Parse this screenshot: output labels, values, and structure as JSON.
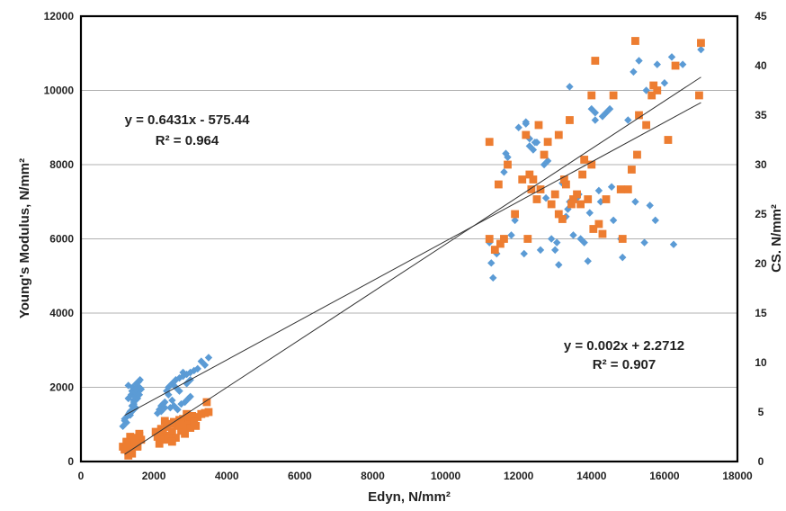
{
  "chart_data": {
    "type": "scatter",
    "title": "",
    "xlabel": "Edyn, N/mm²",
    "ylabel": "Young's Modulus, N/mm²",
    "y2label": "CS. N/mm²",
    "xlim": [
      0,
      18000
    ],
    "ylim": [
      0,
      12000
    ],
    "y2lim": [
      0,
      45
    ],
    "xticks": [
      0,
      2000,
      4000,
      6000,
      8000,
      10000,
      12000,
      14000,
      16000,
      18000
    ],
    "yticks": [
      0,
      2000,
      4000,
      6000,
      8000,
      10000,
      12000
    ],
    "y2ticks": [
      0,
      5,
      10,
      15,
      20,
      25,
      30,
      35,
      40,
      45
    ],
    "grid": "horizontal",
    "legend": "none",
    "colors": {
      "series1": "#5b9bd5",
      "series2": "#ed7d31",
      "trend": "#333333"
    },
    "series": [
      {
        "axis": "left",
        "marker": "diamond",
        "trendline": {
          "slope": 0.6431,
          "intercept": -575.44,
          "x_range": [
            1200,
            17000
          ]
        },
        "equation": "y = 0.6431x - 575.44",
        "r2": "R² = 0.964",
        "x": [
          1150,
          1200,
          1250,
          1300,
          1320,
          1350,
          1380,
          1400,
          1420,
          1450,
          1480,
          1500,
          1520,
          1550,
          1580,
          1600,
          1620,
          1650,
          1250,
          1300,
          1350,
          1400,
          1450,
          1500,
          1550,
          1600,
          1300,
          1400,
          1500,
          1200,
          1350,
          1450,
          2100,
          2150,
          2200,
          2250,
          2300,
          2350,
          2400,
          2450,
          2500,
          2550,
          2600,
          2650,
          2700,
          2750,
          2800,
          2850,
          2900,
          2950,
          3000,
          2400,
          2600,
          2800,
          3000,
          3100,
          3200,
          3300,
          3400,
          3500,
          2200,
          2300,
          2500,
          2700,
          2900,
          3000,
          11200,
          11300,
          11400,
          11600,
          11700,
          11900,
          12000,
          12200,
          12300,
          12400,
          12500,
          12600,
          12700,
          12800,
          12900,
          13000,
          13100,
          13200,
          13300,
          13400,
          13500,
          13600,
          13700,
          13800,
          13900,
          14000,
          14100,
          14200,
          14300,
          14400,
          14500,
          14600,
          14800,
          15000,
          15200,
          15300,
          15500,
          15600,
          15800,
          16000,
          16200,
          16500,
          17000,
          11250,
          11800,
          12150,
          12450,
          12750,
          13050,
          13350,
          13650,
          13950,
          14250,
          14550,
          14850,
          15150,
          15450,
          15750,
          16250,
          13400,
          14100,
          12300,
          11650,
          12200
        ],
        "y": [
          950,
          1100,
          1200,
          1700,
          1300,
          1350,
          1800,
          1900,
          2000,
          1650,
          1750,
          1850,
          2100,
          1900,
          2150,
          2000,
          2200,
          1950,
          1050,
          2050,
          1250,
          1500,
          1600,
          1450,
          1700,
          1800,
          1250,
          1350,
          1950,
          1150,
          1300,
          1550,
          1300,
          1400,
          1500,
          1550,
          1600,
          1900,
          2000,
          1450,
          2100,
          1500,
          2200,
          1400,
          2250,
          1550,
          2300,
          1600,
          2350,
          1700,
          2400,
          1800,
          2000,
          2400,
          1750,
          2450,
          2500,
          2700,
          2600,
          2800,
          1350,
          1450,
          1650,
          1900,
          2100,
          2200,
          5900,
          4950,
          5600,
          7800,
          8200,
          6500,
          9000,
          9100,
          8500,
          8400,
          8600,
          5700,
          8000,
          8100,
          6000,
          5700,
          5300,
          7500,
          6600,
          7000,
          6100,
          7100,
          6000,
          5900,
          5400,
          9500,
          9200,
          7300,
          9300,
          9400,
          9500,
          6500,
          6000,
          9200,
          7000,
          10800,
          10000,
          6900,
          10700,
          10200,
          10900,
          10700,
          11100,
          5350,
          6100,
          5600,
          8600,
          7100,
          5900,
          6800,
          7200,
          6700,
          7000,
          7400,
          5500,
          10500,
          5900,
          6500,
          5850,
          10100,
          9400,
          8700,
          8300,
          9150
        ]
      },
      {
        "axis": "right",
        "marker": "square",
        "trendline": {
          "slope": 0.002,
          "intercept": 2.2712,
          "x_range": [
            1200,
            17000
          ]
        },
        "equation": "y = 0.002x + 2.2712",
        "r2": "R² = 0.907",
        "x": [
          1150,
          1200,
          1250,
          1300,
          1350,
          1400,
          1450,
          1500,
          1550,
          1600,
          1650,
          1200,
          1300,
          1400,
          1500,
          1600,
          1350,
          1450,
          1250,
          1550,
          2050,
          2100,
          2150,
          2200,
          2250,
          2300,
          2350,
          2400,
          2450,
          2500,
          2550,
          2600,
          2650,
          2700,
          2750,
          2800,
          2850,
          2900,
          2950,
          3000,
          3050,
          3100,
          3150,
          3200,
          3300,
          3400,
          3450,
          3500,
          2200,
          2400,
          2600,
          2800,
          3000,
          2300,
          2500,
          2700,
          2900,
          3100,
          11200,
          11350,
          11500,
          11600,
          11700,
          11900,
          12100,
          12200,
          12300,
          12400,
          12500,
          12600,
          12700,
          12800,
          12900,
          13000,
          13100,
          13200,
          13300,
          13400,
          13500,
          13600,
          13700,
          13800,
          13900,
          14000,
          14100,
          14200,
          14300,
          14400,
          14600,
          14800,
          15000,
          15200,
          15300,
          15500,
          15700,
          15800,
          16100,
          16300,
          17000,
          11200,
          12250,
          12550,
          13100,
          13450,
          13750,
          14050,
          14850,
          15250,
          15650,
          16950,
          14000,
          15100,
          13250,
          12350,
          11450
        ],
        "y": [
          1.5,
          1.2,
          2.0,
          1.0,
          2.5,
          0.8,
          1.8,
          2.2,
          1.5,
          2.8,
          2.2,
          1.3,
          0.6,
          1.7,
          2.0,
          2.6,
          1.2,
          2.4,
          1.9,
          1.6,
          3.0,
          2.5,
          1.8,
          3.2,
          2.8,
          2.2,
          3.5,
          2.6,
          3.8,
          3.0,
          4.0,
          2.4,
          3.6,
          4.2,
          3.1,
          4.3,
          2.8,
          3.9,
          4.4,
          3.4,
          4.6,
          4.1,
          3.6,
          4.5,
          4.8,
          4.9,
          6.0,
          5.0,
          3.3,
          2.4,
          3.9,
          3.2,
          4.5,
          4.1,
          2.0,
          3.7,
          4.8,
          4.0,
          22.5,
          21.4,
          22.0,
          22.5,
          30.0,
          25.0,
          28.5,
          33.0,
          29.0,
          28.5,
          26.5,
          27.5,
          31.0,
          32.3,
          26.0,
          27.0,
          33.0,
          24.5,
          28.0,
          34.5,
          26.5,
          27.0,
          26.0,
          30.5,
          26.5,
          30.0,
          40.5,
          24.0,
          23.0,
          26.5,
          37.0,
          27.5,
          27.5,
          42.5,
          35.0,
          34.0,
          38.0,
          37.5,
          32.5,
          40.0,
          42.3,
          32.3,
          22.5,
          34.0,
          25.0,
          26.0,
          29.0,
          23.5,
          22.5,
          31.0,
          37.0,
          37.0,
          37.0,
          29.5,
          28.5,
          27.5,
          28.0
        ]
      }
    ]
  }
}
